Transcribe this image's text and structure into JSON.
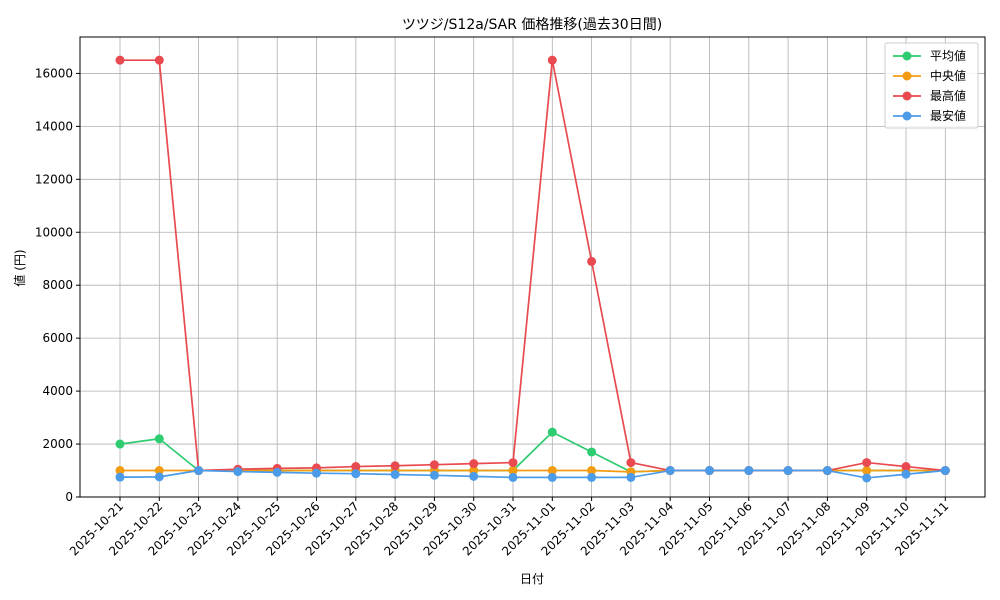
{
  "chart_data": {
    "type": "line",
    "title": "ツツジ/S12a/SAR 価格推移(過去30日間)",
    "xlabel": "日付",
    "ylabel": "値 (円)",
    "ylim": [
      0,
      17300
    ],
    "yticks": [
      0,
      2000,
      4000,
      6000,
      8000,
      10000,
      12000,
      14000,
      16000
    ],
    "grid": true,
    "legend_position": "top-right",
    "categories": [
      "2025-10-21",
      "2025-10-22",
      "2025-10-23",
      "2025-10-24",
      "2025-10-25",
      "2025-10-26",
      "2025-10-27",
      "2025-10-28",
      "2025-10-29",
      "2025-10-30",
      "2025-10-31",
      "2025-11-01",
      "2025-11-02",
      "2025-11-03",
      "2025-11-04",
      "2025-11-05",
      "2025-11-06",
      "2025-11-07",
      "2025-11-08",
      "2025-11-09",
      "2025-11-10",
      "2025-11-11"
    ],
    "series": [
      {
        "name": "平均値",
        "color": "#2ecc71",
        "values": [
          2000,
          2200,
          1000,
          1000,
          1000,
          1000,
          1000,
          1000,
          1000,
          1000,
          1000,
          2450,
          1700,
          950,
          1000,
          1000,
          1000,
          1000,
          1000,
          1000,
          1000,
          1000
        ]
      },
      {
        "name": "中央値",
        "color": "#f39c12",
        "values": [
          1000,
          1000,
          1000,
          1000,
          1000,
          1000,
          1000,
          1000,
          1000,
          1000,
          1000,
          1000,
          1000,
          950,
          1000,
          1000,
          1000,
          1000,
          1000,
          1000,
          1000,
          1000
        ]
      },
      {
        "name": "最高値",
        "color": "#e84a4f",
        "values": [
          16500,
          16500,
          1000,
          1050,
          1080,
          1100,
          1150,
          1180,
          1220,
          1260,
          1300,
          16500,
          8900,
          1300,
          1000,
          1000,
          1000,
          1000,
          1000,
          1300,
          1150,
          1000
        ]
      },
      {
        "name": "最安値",
        "color": "#4c9be8",
        "values": [
          750,
          760,
          1000,
          960,
          930,
          900,
          880,
          850,
          820,
          780,
          740,
          740,
          740,
          740,
          1000,
          1000,
          1000,
          1000,
          1000,
          720,
          860,
          1000
        ]
      }
    ]
  }
}
